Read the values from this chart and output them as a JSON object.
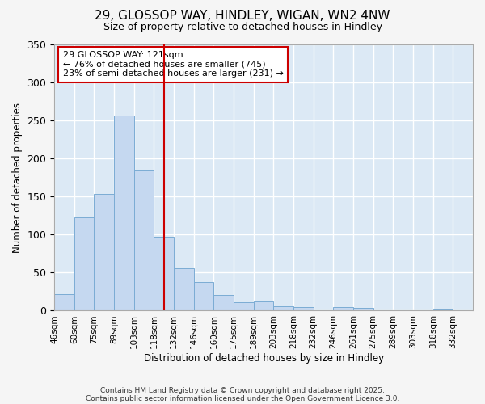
{
  "title_line1": "29, GLOSSOP WAY, HINDLEY, WIGAN, WN2 4NW",
  "title_line2": "Size of property relative to detached houses in Hindley",
  "xlabel": "Distribution of detached houses by size in Hindley",
  "ylabel": "Number of detached properties",
  "bar_labels": [
    "46sqm",
    "60sqm",
    "75sqm",
    "89sqm",
    "103sqm",
    "118sqm",
    "132sqm",
    "146sqm",
    "160sqm",
    "175sqm",
    "189sqm",
    "203sqm",
    "218sqm",
    "232sqm",
    "246sqm",
    "261sqm",
    "275sqm",
    "289sqm",
    "303sqm",
    "318sqm",
    "332sqm"
  ],
  "bar_heights": [
    22,
    123,
    153,
    256,
    184,
    97,
    56,
    38,
    21,
    11,
    12,
    6,
    5,
    0,
    5,
    4,
    0,
    0,
    0,
    2,
    0
  ],
  "bar_color": "#c5d8f0",
  "bar_edge_color": "#7bacd4",
  "annotation_box_text": "29 GLOSSOP WAY: 121sqm\n← 76% of detached houses are smaller (745)\n23% of semi-detached houses are larger (231) →",
  "property_line_x": 5.5,
  "property_line_color": "#cc0000",
  "annotation_box_color": "#cc0000",
  "plot_bg_color": "#dce9f5",
  "fig_bg_color": "#f5f5f5",
  "grid_color": "#ffffff",
  "ylim": [
    0,
    350
  ],
  "yticks": [
    0,
    50,
    100,
    150,
    200,
    250,
    300,
    350
  ],
  "figsize": [
    6.0,
    5.0
  ],
  "dpi": 100,
  "footnote1": "Contains HM Land Registry data © Crown copyright and database right 2025.",
  "footnote2": "Contains public sector information licensed under the Open Government Licence 3.0."
}
